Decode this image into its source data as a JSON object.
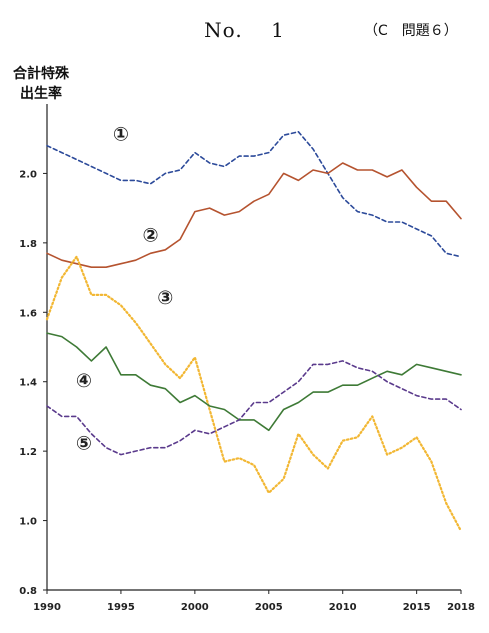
{
  "header": {
    "title": "No.  1",
    "question": "（C　問題６）",
    "ylabel_line1": "合計特殊",
    "ylabel_line2": "出生率"
  },
  "chart_data": {
    "type": "line",
    "title": "No. 1",
    "ylabel": "合計特殊出生率",
    "xlabel": "",
    "xlim": [
      1990,
      2018
    ],
    "ylim": [
      0.8,
      2.2
    ],
    "x_ticks": [
      1990,
      1995,
      2000,
      2005,
      2010,
      2015,
      2018
    ],
    "y_ticks": [
      0.8,
      1.0,
      1.2,
      1.4,
      1.6,
      1.8,
      2.0
    ],
    "x": [
      1990,
      1991,
      1992,
      1993,
      1994,
      1995,
      1996,
      1997,
      1998,
      1999,
      2000,
      2001,
      2002,
      2003,
      2004,
      2005,
      2006,
      2007,
      2008,
      2009,
      2010,
      2011,
      2012,
      2013,
      2014,
      2015,
      2016,
      2017,
      2018
    ],
    "series": [
      {
        "name": "①",
        "color": "#2c4a9a",
        "style": "dashed",
        "label_at": [
          1995,
          2.11
        ],
        "values": [
          2.08,
          2.06,
          2.04,
          2.02,
          2.0,
          1.98,
          1.98,
          1.97,
          2.0,
          2.01,
          2.06,
          2.03,
          2.02,
          2.05,
          2.05,
          2.06,
          2.11,
          2.12,
          2.07,
          2.0,
          1.93,
          1.89,
          1.88,
          1.86,
          1.86,
          1.84,
          1.82,
          1.77,
          1.76
        ]
      },
      {
        "name": "②",
        "color": "#b5532f",
        "style": "solid",
        "label_at": [
          1997,
          1.82
        ],
        "values": [
          1.77,
          1.75,
          1.74,
          1.73,
          1.73,
          1.74,
          1.75,
          1.77,
          1.78,
          1.81,
          1.89,
          1.9,
          1.88,
          1.89,
          1.92,
          1.94,
          2.0,
          1.98,
          2.01,
          2.0,
          2.03,
          2.01,
          2.01,
          1.99,
          2.01,
          1.96,
          1.92,
          1.92,
          1.87
        ]
      },
      {
        "name": "③",
        "color": "#f2b733",
        "style": "dotted",
        "label_at": [
          1998,
          1.64
        ],
        "values": [
          1.58,
          1.7,
          1.76,
          1.65,
          1.65,
          1.62,
          1.57,
          1.51,
          1.45,
          1.41,
          1.47,
          1.32,
          1.17,
          1.18,
          1.16,
          1.08,
          1.12,
          1.25,
          1.19,
          1.15,
          1.23,
          1.24,
          1.3,
          1.19,
          1.21,
          1.24,
          1.17,
          1.05,
          0.97
        ]
      },
      {
        "name": "④",
        "color": "#3e7a36",
        "style": "solid",
        "label_at": [
          1992.5,
          1.4
        ],
        "values": [
          1.54,
          1.53,
          1.5,
          1.46,
          1.5,
          1.42,
          1.42,
          1.39,
          1.38,
          1.34,
          1.36,
          1.33,
          1.32,
          1.29,
          1.29,
          1.26,
          1.32,
          1.34,
          1.37,
          1.37,
          1.39,
          1.39,
          1.41,
          1.43,
          1.42,
          1.45,
          1.44,
          1.43,
          1.42
        ]
      },
      {
        "name": "⑤",
        "color": "#5a3a8c",
        "style": "dashed",
        "label_at": [
          1992.5,
          1.22
        ],
        "values": [
          1.33,
          1.3,
          1.3,
          1.25,
          1.21,
          1.19,
          1.2,
          1.21,
          1.21,
          1.23,
          1.26,
          1.25,
          1.27,
          1.29,
          1.34,
          1.34,
          1.37,
          1.4,
          1.45,
          1.45,
          1.46,
          1.44,
          1.43,
          1.4,
          1.38,
          1.36,
          1.35,
          1.35,
          1.32
        ]
      }
    ]
  }
}
